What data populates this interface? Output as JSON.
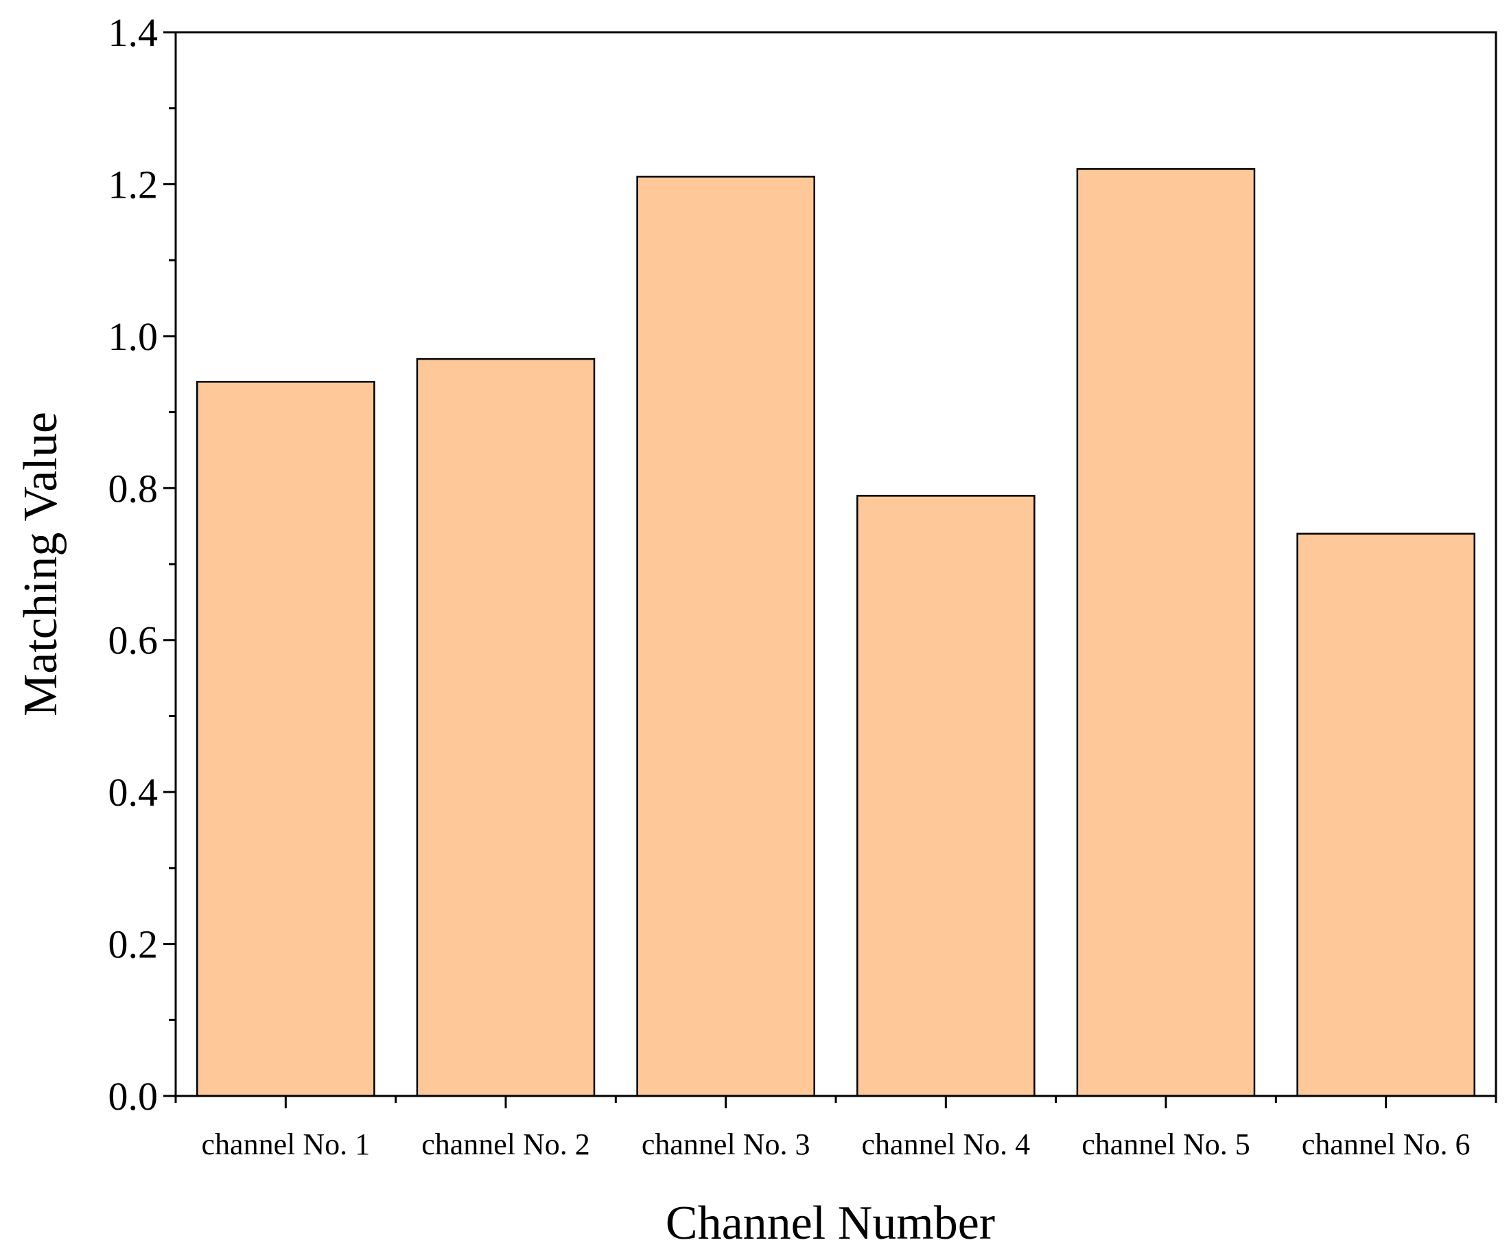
{
  "chart_data": {
    "type": "bar",
    "title": "",
    "xlabel": "Channel Number",
    "ylabel": "Matching Value",
    "categories": [
      "channel No. 1",
      "channel No. 2",
      "channel No. 3",
      "channel No. 4",
      "channel No. 5",
      "channel No. 6"
    ],
    "series": [
      {
        "values": [
          0.94,
          0.97,
          1.21,
          0.79,
          1.22,
          0.74
        ]
      }
    ],
    "ylim": [
      0,
      1.4
    ],
    "yticks": [
      "0.0",
      "0.2",
      "0.4",
      "0.6",
      "0.8",
      "1.0",
      "1.2",
      "1.4"
    ],
    "grid": false,
    "legend": "none",
    "colors": {
      "bar_fill": "#FEC899",
      "bar_stroke": "#000000",
      "axis": "#000000"
    }
  }
}
